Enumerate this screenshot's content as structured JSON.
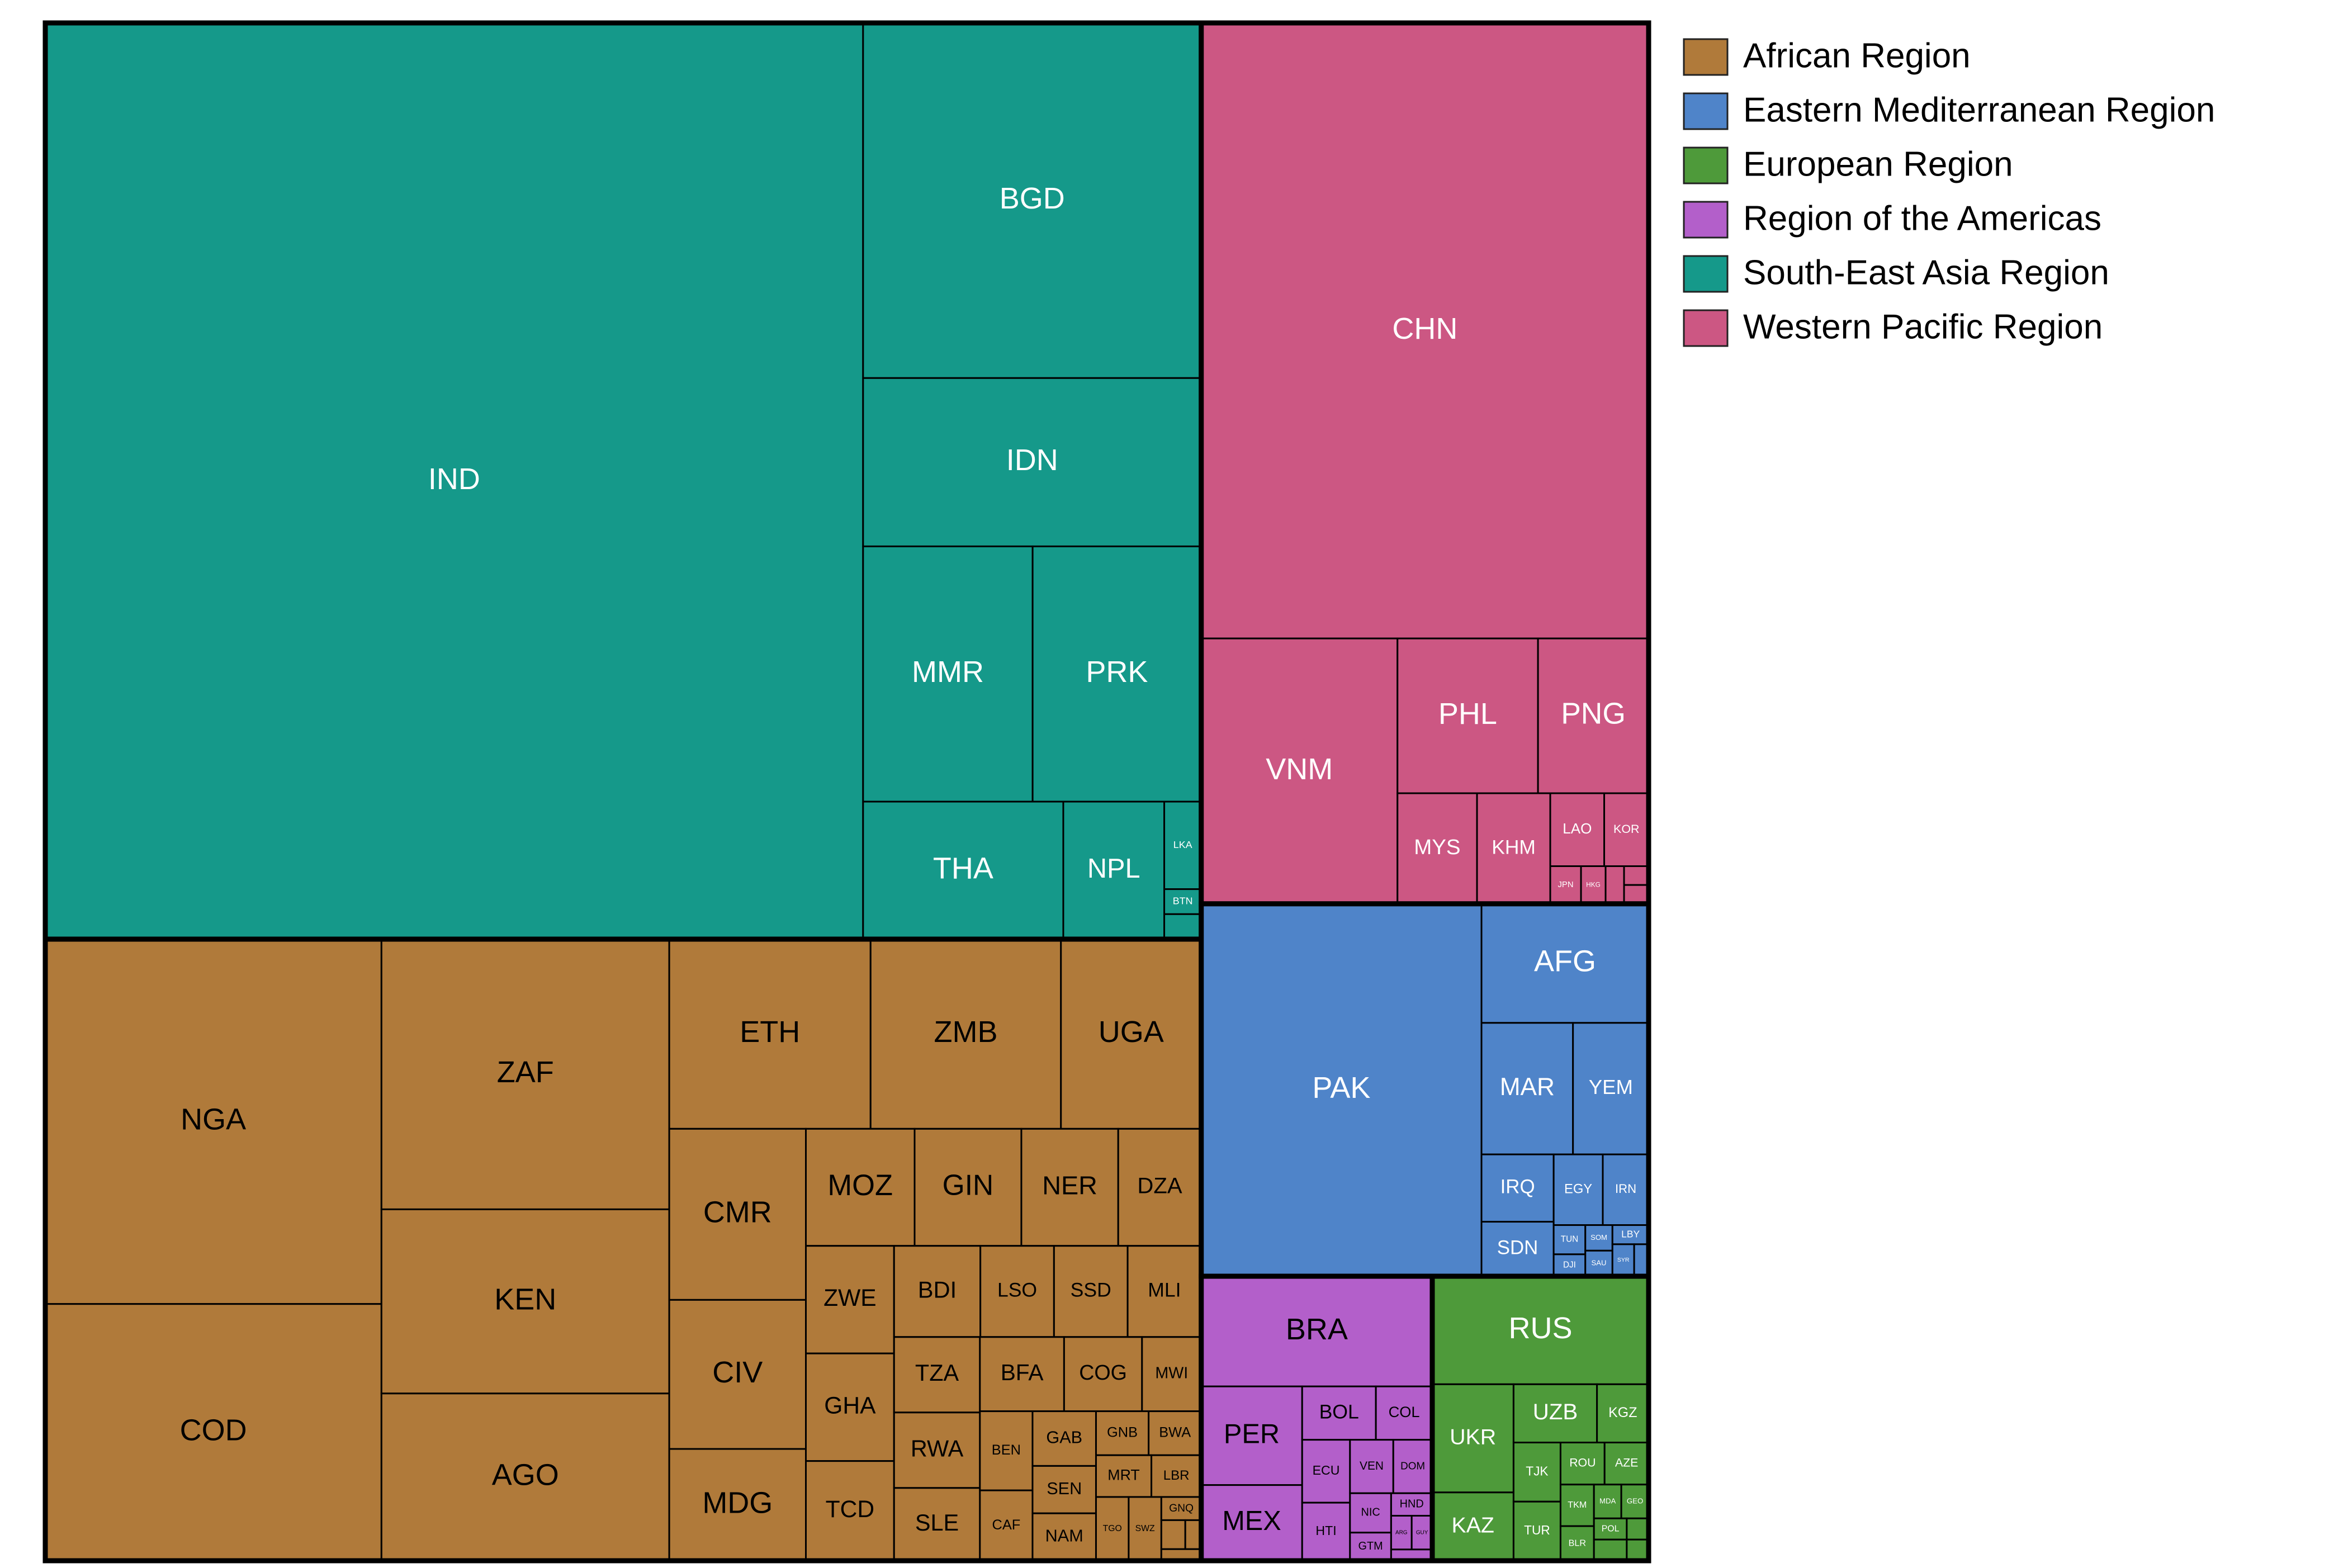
{
  "chart_data": {
    "type": "treemap",
    "series": [
      {
        "name": "African Region",
        "color": "#b07a3a",
        "categories": [
          "NGA",
          "COD",
          "ZAF",
          "KEN",
          "AGO",
          "ETH",
          "ZMB",
          "UGA",
          "CMR",
          "CIV",
          "MDG",
          "MOZ",
          "GIN",
          "NER",
          "DZA",
          "ZWE",
          "GHA",
          "TCD",
          "BDI",
          "LSO",
          "SSD",
          "MLI",
          "TZA",
          "RWA",
          "SLE",
          "BFA",
          "COG",
          "MWI",
          "BEN",
          "CAF",
          "GAB",
          "SEN",
          "NAM",
          "GNB",
          "BWA",
          "MRT",
          "LBR",
          "TGO",
          "SWZ",
          "GNQ",
          null,
          null,
          null
        ],
        "values": [
          530,
          373,
          336,
          229,
          208,
          165,
          156,
          115,
          101,
          88,
          66,
          55,
          54,
          49,
          42,
          41,
          41,
          38,
          34,
          29,
          29,
          29,
          28,
          28,
          27,
          27,
          25,
          19,
          18,
          16,
          15,
          13,
          13,
          10,
          10,
          10,
          9,
          9,
          9,
          4,
          3,
          2,
          2
        ]
      },
      {
        "name": "Eastern Mediterranean Region",
        "color": "#4f84c9",
        "categories": [
          "PAK",
          "AFG",
          "MAR",
          "YEM",
          "IRQ",
          "SDN",
          "EGY",
          "IRN",
          "TUN",
          "DJI",
          "SOM",
          "SAU",
          "LBY",
          "SYR",
          null
        ],
        "values": [
          451,
          86,
          52,
          43,
          21,
          17,
          15,
          14,
          4,
          3,
          3,
          3,
          3,
          3,
          2
        ]
      },
      {
        "name": "European Region",
        "color": "#4e9a3a",
        "categories": [
          "RUS",
          "UKR",
          "KAZ",
          "UZB",
          "KGZ",
          "TJK",
          "TUR",
          "ROU",
          "AZE",
          "TKM",
          "BLR",
          "MDA",
          "GEO",
          "POL",
          null,
          null,
          null
        ],
        "values": [
          101,
          38,
          24,
          21,
          13,
          12,
          12,
          8,
          8,
          6,
          5,
          4,
          4,
          3,
          3,
          2,
          2
        ]
      },
      {
        "name": "Region of the Americas",
        "color": "#b35fca",
        "categories": [
          "BRA",
          "PER",
          "MEX",
          "BOL",
          "COL",
          "ECU",
          "HTI",
          "VEN",
          "DOM",
          "NIC",
          "GTM",
          "HND",
          "ARG",
          "GUY",
          null
        ],
        "values": [
          110,
          43,
          33,
          17,
          13,
          13,
          12,
          10,
          9,
          7,
          5,
          4,
          3,
          3,
          2
        ]
      },
      {
        "name": "South-East Asia Region",
        "color": "#15998a",
        "categories": [
          "IND",
          "BGD",
          "IDN",
          "MMR",
          "PRK",
          "THA",
          "NPL",
          "LKA",
          "BTN",
          null
        ],
        "values": [
          3238,
          519,
          246,
          187,
          186,
          119,
          60,
          14,
          4,
          4
        ]
      },
      {
        "name": "Western Pacific Region",
        "color": "#cc5783",
        "categories": [
          "CHN",
          "VNM",
          "PHL",
          "PNG",
          "MYS",
          "KHM",
          "LAO",
          "KOR",
          "JPN",
          "HKG",
          null,
          null,
          null
        ],
        "values": [
          1190,
          225,
          94,
          74,
          38,
          35,
          17,
          14,
          5,
          4,
          3,
          2,
          2
        ]
      }
    ],
    "legend": "right"
  }
}
